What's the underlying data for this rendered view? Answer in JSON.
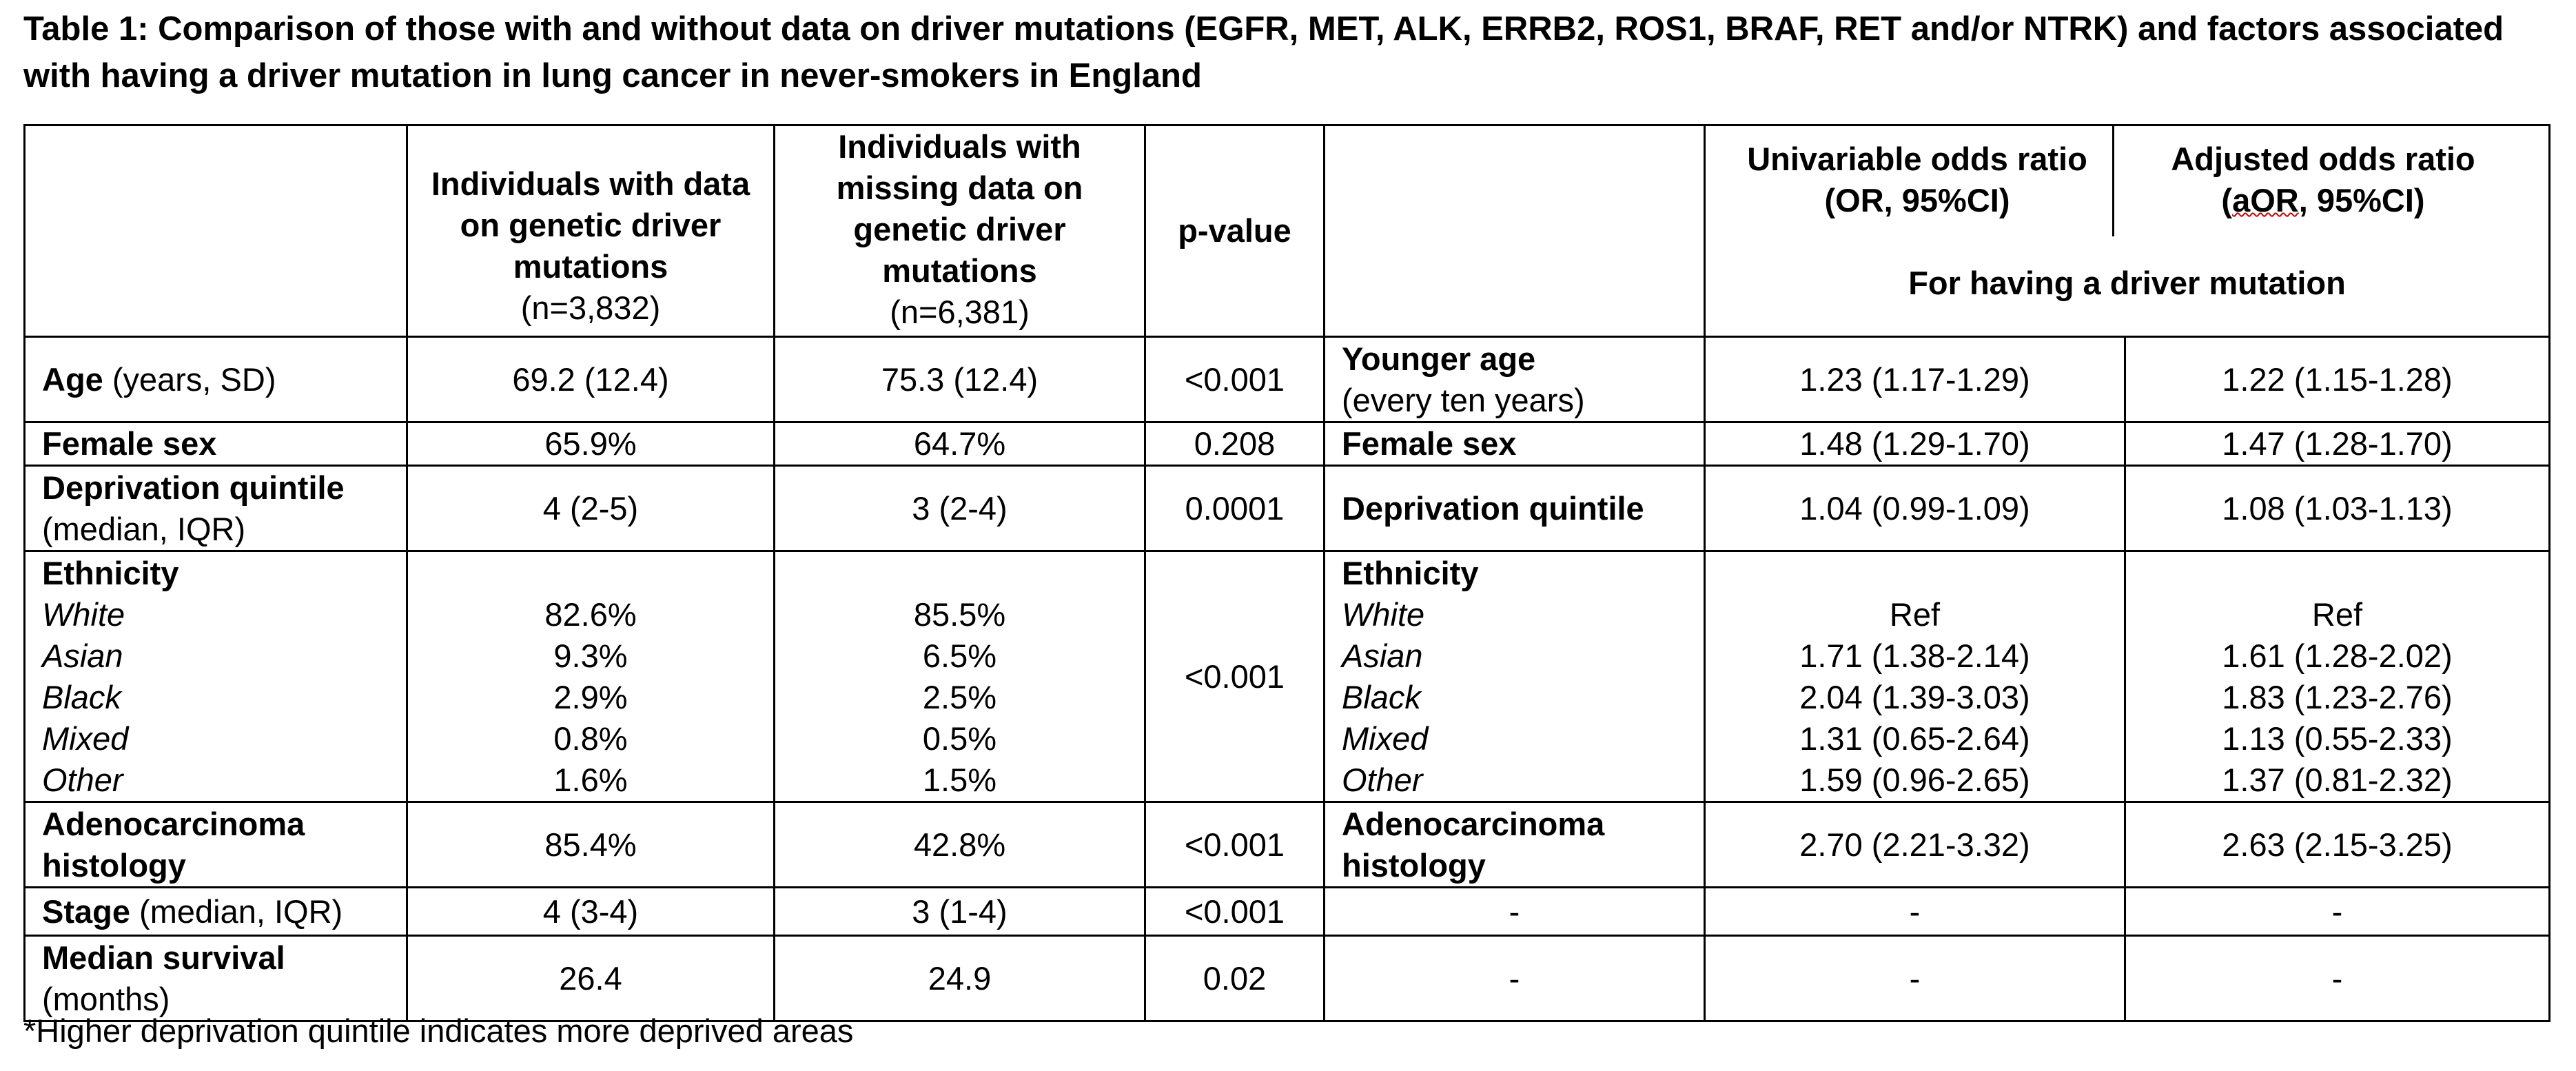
{
  "title": "Table 1: Comparison of those with and without data on driver mutations (EGFR, MET, ALK, ERRB2, ROS1, BRAF, RET and/or NTRK) and factors associated with having a driver mutation in lung cancer in never-smokers in England",
  "header": {
    "col2_line": "Individuals with data on genetic driver mutations",
    "col2_n": "(n=3,832)",
    "col3_line": "Individuals with missing data on genetic driver mutations",
    "col3_n": "(n=6,381)",
    "col4": "p-value",
    "col6": "Univariable odds ratio (OR, 95%CI)",
    "col7_pre": "Adjusted odds ratio (",
    "col7_abbr": "aOR",
    "col7_post": ", 95%CI)",
    "odds_span": "For having a driver mutation"
  },
  "rows": {
    "age": {
      "label_bold": "Age",
      "label_rest": " (years, SD)",
      "with": "69.2 (12.4)",
      "missing": "75.3 (12.4)",
      "p": "<0.001",
      "factor_bold": "Younger age",
      "factor_rest": "(every ten years)",
      "or": "1.23 (1.17-1.29)",
      "aor": "1.22 (1.15-1.28)"
    },
    "sex": {
      "label_bold": "Female sex",
      "with": "65.9%",
      "missing": "64.7%",
      "p": "0.208",
      "factor_bold": "Female sex",
      "or": "1.48 (1.29-1.70)",
      "aor": "1.47 (1.28-1.70)"
    },
    "deprivation": {
      "label_bold": "Deprivation quintile",
      "label_rest": "(median, IQR)",
      "with": "4 (2-5)",
      "missing": "3 (2-4)",
      "p": "0.0001",
      "factor_bold": "Deprivation quintile",
      "or": "1.04 (0.99-1.09)",
      "aor": "1.08 (1.03-1.13)"
    },
    "ethnicity": {
      "label_bold": "Ethnicity",
      "p": "<0.001",
      "factor_bold": "Ethnicity",
      "levels": [
        {
          "name": "White",
          "with": "82.6%",
          "missing": "85.5%",
          "or": "Ref",
          "aor": "Ref"
        },
        {
          "name": "Asian",
          "with": "9.3%",
          "missing": "6.5%",
          "or": "1.71 (1.38-2.14)",
          "aor": "1.61 (1.28-2.02)"
        },
        {
          "name": "Black",
          "with": "2.9%",
          "missing": "2.5%",
          "or": "2.04 (1.39-3.03)",
          "aor": "1.83 (1.23-2.76)"
        },
        {
          "name": "Mixed",
          "with": "0.8%",
          "missing": "0.5%",
          "or": "1.31 (0.65-2.64)",
          "aor": "1.13 (0.55-2.33)"
        },
        {
          "name": "Other",
          "with": "1.6%",
          "missing": "1.5%",
          "or": "1.59 (0.96-2.65)",
          "aor": "1.37 (0.81-2.32)"
        }
      ]
    },
    "histology": {
      "label_bold": "Adenocarcinoma histology",
      "with": "85.4%",
      "missing": "42.8%",
      "p": "<0.001",
      "factor_bold": "Adenocarcinoma histology",
      "or": "2.70 (2.21-3.32)",
      "aor": "2.63 (2.15-3.25)"
    },
    "stage": {
      "label_bold": "Stage",
      "label_rest": " (median, IQR)",
      "with": "4 (3-4)",
      "missing": "3 (1-4)",
      "p": "<0.001",
      "factor": "-",
      "or": "-",
      "aor": "-"
    },
    "survival": {
      "label_bold": "Median survival",
      "label_rest": "(months)",
      "with": "26.4",
      "missing": "24.9",
      "p": "0.02",
      "factor": "-",
      "or": "-",
      "aor": "-"
    }
  },
  "footnote": "*Higher deprivation quintile indicates more deprived areas"
}
